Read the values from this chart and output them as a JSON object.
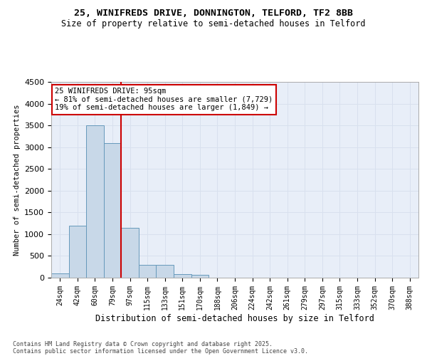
{
  "title_line1": "25, WINIFREDS DRIVE, DONNINGTON, TELFORD, TF2 8BB",
  "title_line2": "Size of property relative to semi-detached houses in Telford",
  "xlabel": "Distribution of semi-detached houses by size in Telford",
  "ylabel": "Number of semi-detached properties",
  "categories": [
    "24sqm",
    "42sqm",
    "60sqm",
    "79sqm",
    "97sqm",
    "115sqm",
    "133sqm",
    "151sqm",
    "170sqm",
    "188sqm",
    "206sqm",
    "224sqm",
    "242sqm",
    "261sqm",
    "279sqm",
    "297sqm",
    "315sqm",
    "333sqm",
    "352sqm",
    "370sqm",
    "388sqm"
  ],
  "values": [
    100,
    1200,
    3500,
    3100,
    1150,
    300,
    300,
    90,
    60,
    5,
    0,
    0,
    0,
    0,
    0,
    0,
    0,
    0,
    0,
    0,
    0
  ],
  "bar_color": "#c8d8e8",
  "bar_edge_color": "#6699bb",
  "vline_color": "#cc0000",
  "vline_x_index": 3.5,
  "annotation_title": "25 WINIFREDS DRIVE: 95sqm",
  "annotation_line1": "← 81% of semi-detached houses are smaller (7,729)",
  "annotation_line2": "19% of semi-detached houses are larger (1,849) →",
  "annotation_box_color": "#cc0000",
  "ylim": [
    0,
    4500
  ],
  "yticks": [
    0,
    500,
    1000,
    1500,
    2000,
    2500,
    3000,
    3500,
    4000,
    4500
  ],
  "grid_color": "#d8e0ee",
  "bg_color": "#e8eef8",
  "footnote_line1": "Contains HM Land Registry data © Crown copyright and database right 2025.",
  "footnote_line2": "Contains public sector information licensed under the Open Government Licence v3.0."
}
